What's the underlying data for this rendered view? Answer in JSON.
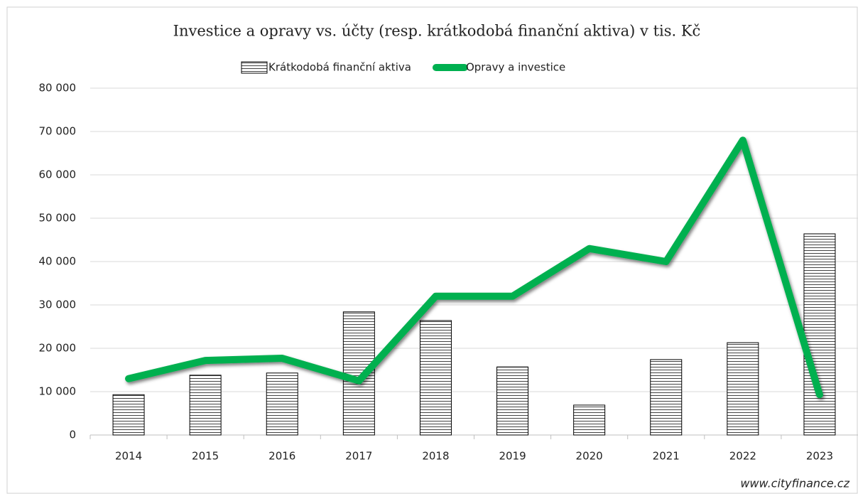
{
  "chart_data": {
    "type": "bar_line",
    "title": "Investice a opravy vs. účty (resp. krátkodobá finanční aktiva) v tis. Kč",
    "categories": [
      "2014",
      "2015",
      "2016",
      "2017",
      "2018",
      "2019",
      "2020",
      "2021",
      "2022",
      "2023"
    ],
    "series": [
      {
        "name": "Krátkodobá finanční aktiva",
        "type": "bar",
        "color": "#000000",
        "values": [
          9300,
          13800,
          14300,
          28400,
          26400,
          15700,
          6900,
          17400,
          21300,
          46400
        ]
      },
      {
        "name": "Opravy a investice",
        "type": "line",
        "color": "#00b050",
        "values": [
          13000,
          17200,
          17700,
          12500,
          32000,
          32000,
          43000,
          40000,
          68000,
          9300
        ]
      }
    ],
    "ylim": [
      0,
      80000
    ],
    "yticks": [
      0,
      {
        "value": 10000,
        "label": "10 000"
      },
      {
        "value": 20000,
        "label": "20 000"
      },
      {
        "value": 30000,
        "label": "30 000"
      },
      {
        "value": 40000,
        "label": "40 000"
      },
      {
        "value": 50000,
        "label": "50 000"
      },
      {
        "value": 60000,
        "label": "60 000"
      },
      {
        "value": 70000,
        "label": "70 000"
      },
      {
        "value": 80000,
        "label": "80 000"
      }
    ],
    "grid": true,
    "legend": "top",
    "source": "www.cityfinance.cz"
  }
}
